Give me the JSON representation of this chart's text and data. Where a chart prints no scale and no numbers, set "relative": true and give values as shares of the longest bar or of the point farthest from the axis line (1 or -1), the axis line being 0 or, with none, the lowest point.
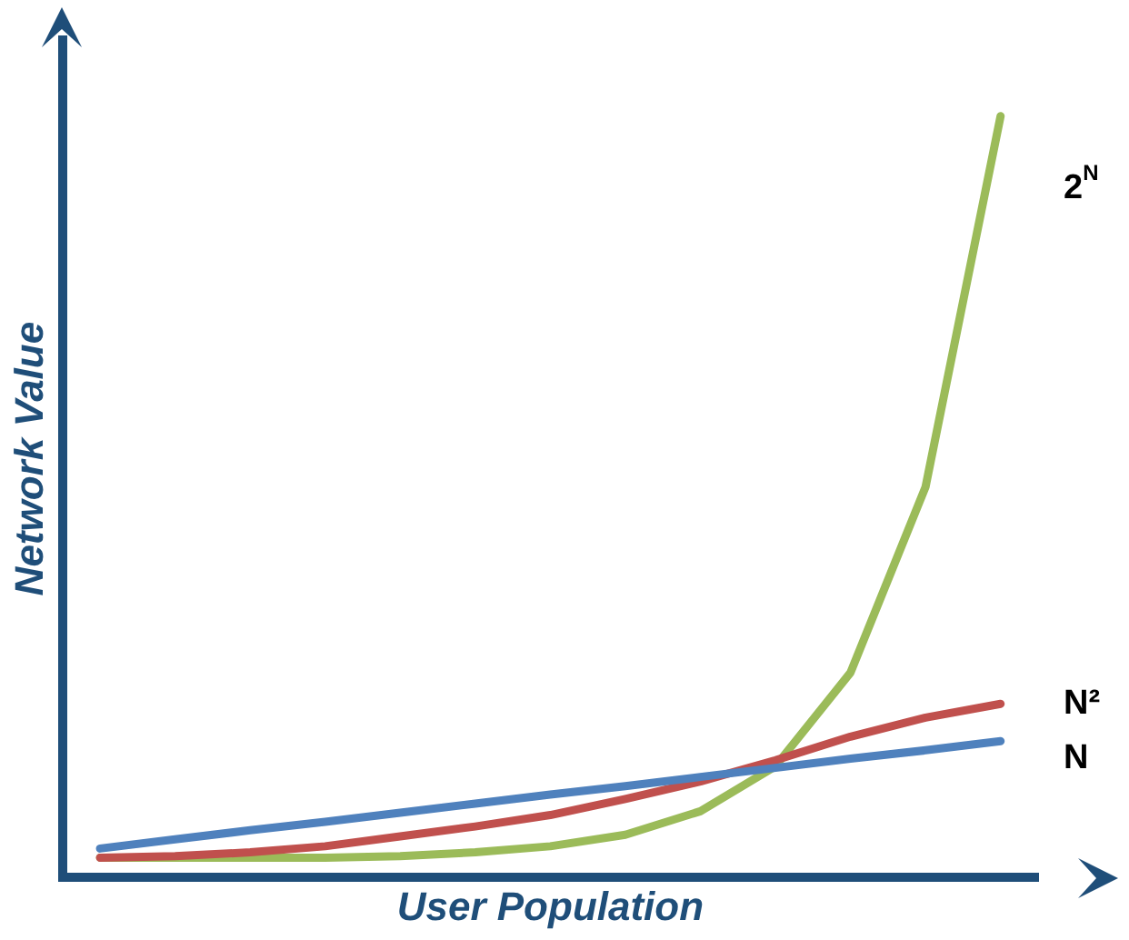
{
  "chart_data": {
    "type": "line",
    "relative": true,
    "xlabel": "User Population",
    "ylabel": "Network Value",
    "categories": [
      null,
      null,
      null,
      null,
      null,
      null,
      null,
      null,
      null,
      null,
      null,
      null,
      null
    ],
    "series": [
      {
        "name": "N",
        "color": "#4f81bd",
        "values": [
          0.038,
          0.05,
          0.062,
          0.073,
          0.085,
          0.097,
          0.109,
          0.12,
          0.132,
          0.144,
          0.156,
          0.167,
          0.179
        ]
      },
      {
        "name": "N²",
        "color": "#c0504d",
        "values": [
          0.026,
          0.028,
          0.033,
          0.041,
          0.054,
          0.067,
          0.082,
          0.103,
          0.126,
          0.154,
          0.185,
          0.21,
          0.228
        ]
      },
      {
        "name": "2$^{N}$",
        "color": "#9bbb59",
        "values": [
          0.026,
          0.026,
          0.026,
          0.026,
          0.028,
          0.033,
          0.041,
          0.056,
          0.087,
          0.146,
          0.269,
          0.513,
          1
        ]
      }
    ],
    "legend": false,
    "grid": false,
    "marker": "none",
    "line_style": "solid",
    "tick_labels": false
  }
}
